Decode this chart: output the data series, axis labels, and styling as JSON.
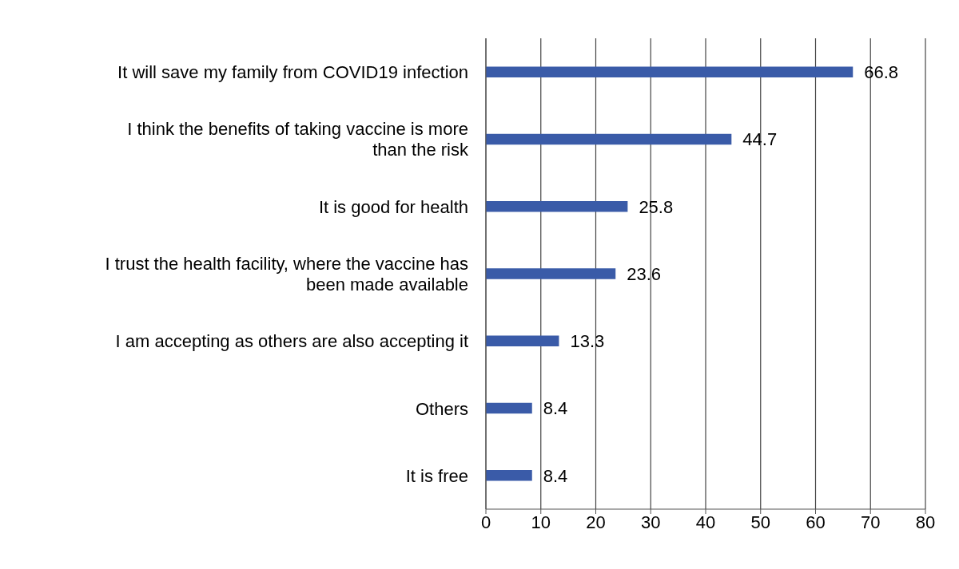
{
  "chart_data": {
    "type": "bar",
    "orientation": "horizontal",
    "categories": [
      "It will save my family from COVID19 infection",
      "I think the benefits of taking vaccine is more than the risk",
      "It is good for health",
      "I trust the health facility, where the vaccine has been made available",
      "I am accepting as others are also accepting it",
      "Others",
      "It is free"
    ],
    "values": [
      66.8,
      44.7,
      25.8,
      23.6,
      13.3,
      8.4,
      8.4
    ],
    "color": "#3a5ba8",
    "xlim": [
      0,
      80
    ],
    "xticks": [
      0,
      10,
      20,
      30,
      40,
      50,
      60,
      70,
      80
    ],
    "grid": "x",
    "data_labels": true
  }
}
